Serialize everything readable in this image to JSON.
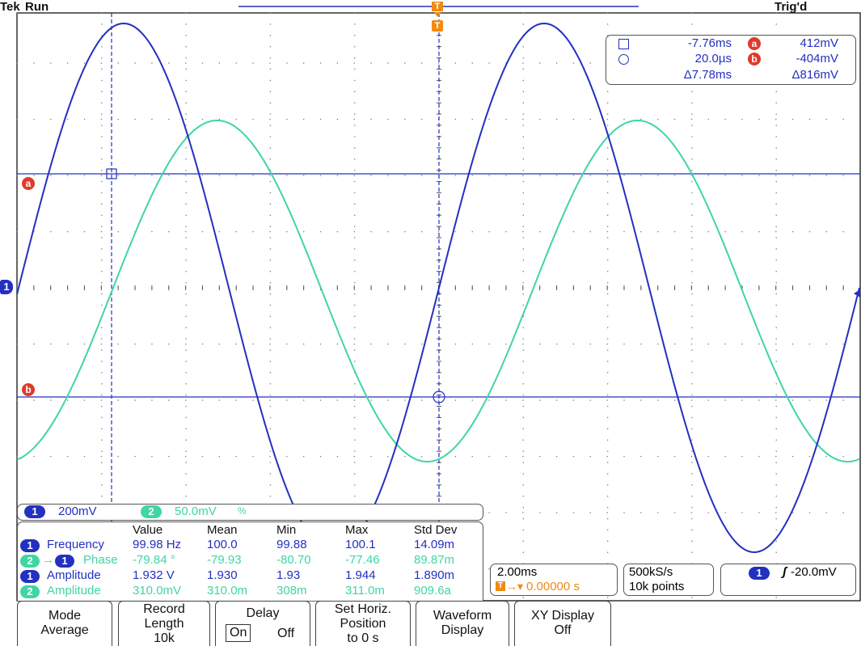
{
  "header": {
    "brand": "Tek",
    "run_state": "Run",
    "trigger_status": "Trig'd"
  },
  "channel1_marker": "1",
  "cursor_marker_a": "a",
  "cursor_marker_b": "b",
  "trigger_marker": "T",
  "cursor_readout": {
    "t1": "-7.76ms",
    "t2": "20.0µs",
    "dt": "Δ7.78ms",
    "a_label": "a",
    "a": "412mV",
    "b_label": "b",
    "b": "-404mV",
    "dv": "Δ816mV"
  },
  "scale_bar": {
    "ch1_num": "1",
    "ch1_scale": "200mV",
    "ch2_num": "2",
    "ch2_scale": "50.0mV",
    "ch2_suffix": "%"
  },
  "measurements": {
    "headers": [
      "Value",
      "Mean",
      "Min",
      "Max",
      "Std Dev"
    ],
    "rows": [
      {
        "ch": "1",
        "name": "Frequency",
        "value": "99.98 Hz",
        "mean": "100.0",
        "min": "99.88",
        "max": "100.1",
        "std": "14.09m"
      },
      {
        "ch": "2",
        "ch_ref": "1",
        "name": "Phase",
        "value": "-79.84 °",
        "mean": "-79.93",
        "min": "-80.70",
        "max": "-77.46",
        "std": "89.87m"
      },
      {
        "ch": "1",
        "name": "Amplitude",
        "value": "1.932 V",
        "mean": "1.930",
        "min": "1.93",
        "max": "1.944",
        "std": "1.890m"
      },
      {
        "ch": "2",
        "name": "Amplitude",
        "value": "310.0mV",
        "mean": "310.0m",
        "min": "308m",
        "max": "311.0m",
        "std": "909.6a"
      }
    ]
  },
  "horizontal": {
    "scale": "2.00ms",
    "position": "0.00000 s"
  },
  "acquisition": {
    "rate": "500kS/s",
    "points": "10k points"
  },
  "trigger": {
    "ch": "1",
    "level": "-20.0mV"
  },
  "menu": {
    "mode_title": "Mode",
    "mode_value": "Average",
    "record_title": "Record Length",
    "record_value": "10k",
    "delay_title": "Delay",
    "delay_on": "On",
    "delay_off": "Off",
    "sethoriz_line1": "Set Horiz.",
    "sethoriz_line2": "Position",
    "sethoriz_line3": "to 0 s",
    "waveform_line1": "Waveform",
    "waveform_line2": "Display",
    "xy_line1": "XY Display",
    "xy_line2": "Off"
  },
  "colors": {
    "ch1": "#2330c0",
    "ch2": "#3fd6a4",
    "marker": "#e03a2a",
    "trigger": "#f08a14"
  }
}
